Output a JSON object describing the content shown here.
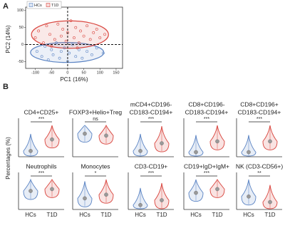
{
  "chart_data": [
    {
      "type": "scatter",
      "panel_label": "A",
      "x_label": "PC1 (16%)",
      "y_label": "PC2 (14%)",
      "xlim": [
        -130,
        170
      ],
      "xticks": [
        -100,
        -50,
        0,
        50,
        100,
        150
      ],
      "ylim": [
        -70,
        110
      ],
      "yticks": [
        -50,
        0,
        50,
        100
      ],
      "series": [
        {
          "name": "HCs",
          "color": "#5b84c4",
          "x": [
            -95,
            -80,
            -70,
            -60,
            -50,
            -45,
            -35,
            -25,
            -20,
            -10,
            0,
            5,
            15,
            25,
            35,
            45,
            60,
            75,
            90,
            110
          ],
          "y": [
            -20,
            -35,
            -5,
            -45,
            -15,
            -30,
            5,
            -40,
            -20,
            -10,
            -50,
            -25,
            0,
            -35,
            -15,
            -40,
            -20,
            -30,
            -10,
            -25
          ]
        },
        {
          "name": "T1D",
          "color": "#d9463f",
          "x": [
            -100,
            -90,
            -75,
            -65,
            -55,
            -40,
            -30,
            -20,
            -15,
            -5,
            0,
            10,
            20,
            25,
            35,
            40,
            50,
            60,
            70,
            80,
            90,
            100,
            115,
            -50,
            30
          ],
          "y": [
            20,
            40,
            5,
            55,
            30,
            15,
            60,
            25,
            45,
            10,
            35,
            70,
            20,
            50,
            5,
            40,
            25,
            55,
            15,
            35,
            45,
            20,
            30,
            -5,
            -10
          ]
        }
      ]
    },
    {
      "type": "violin",
      "panel_label": "B",
      "y_label": "Percentages (%)",
      "categories": [
        "HCs",
        "T1D"
      ],
      "colors": [
        "#5b84c4",
        "#d9463f"
      ],
      "ylim": [
        0,
        100
      ],
      "panels": [
        {
          "title": [
            "CD4+CD25+"
          ],
          "significance": "***",
          "values": [
            15,
            45
          ]
        },
        {
          "title": [
            "FOXP3+Helio+Treg"
          ],
          "significance": "ns",
          "values": [
            60,
            55
          ]
        },
        {
          "title": [
            "mCD4+CD196-",
            "CD183-CD194+"
          ],
          "significance": "***",
          "values": [
            15,
            35
          ]
        },
        {
          "title": [
            "CD8+CD196-",
            "CD183-CD194+"
          ],
          "significance": "***",
          "values": [
            12,
            40
          ]
        },
        {
          "title": [
            "CD8+CD196+",
            "CD183-CD194+"
          ],
          "significance": "***",
          "values": [
            12,
            40
          ]
        },
        {
          "title": [
            "Neutrophils"
          ],
          "significance": "***",
          "values": [
            50,
            55
          ]
        },
        {
          "title": [
            "Monocytes"
          ],
          "significance": "*",
          "values": [
            30,
            40
          ]
        },
        {
          "title": [
            "CD3-CD19+"
          ],
          "significance": "***",
          "values": [
            12,
            25
          ]
        },
        {
          "title": [
            "CD19+IgD+IgM+"
          ],
          "significance": "***",
          "values": [
            45,
            55
          ]
        },
        {
          "title": [
            "NK (CD3-CD56+)"
          ],
          "significance": "**",
          "values": [
            35,
            20
          ]
        }
      ]
    }
  ]
}
